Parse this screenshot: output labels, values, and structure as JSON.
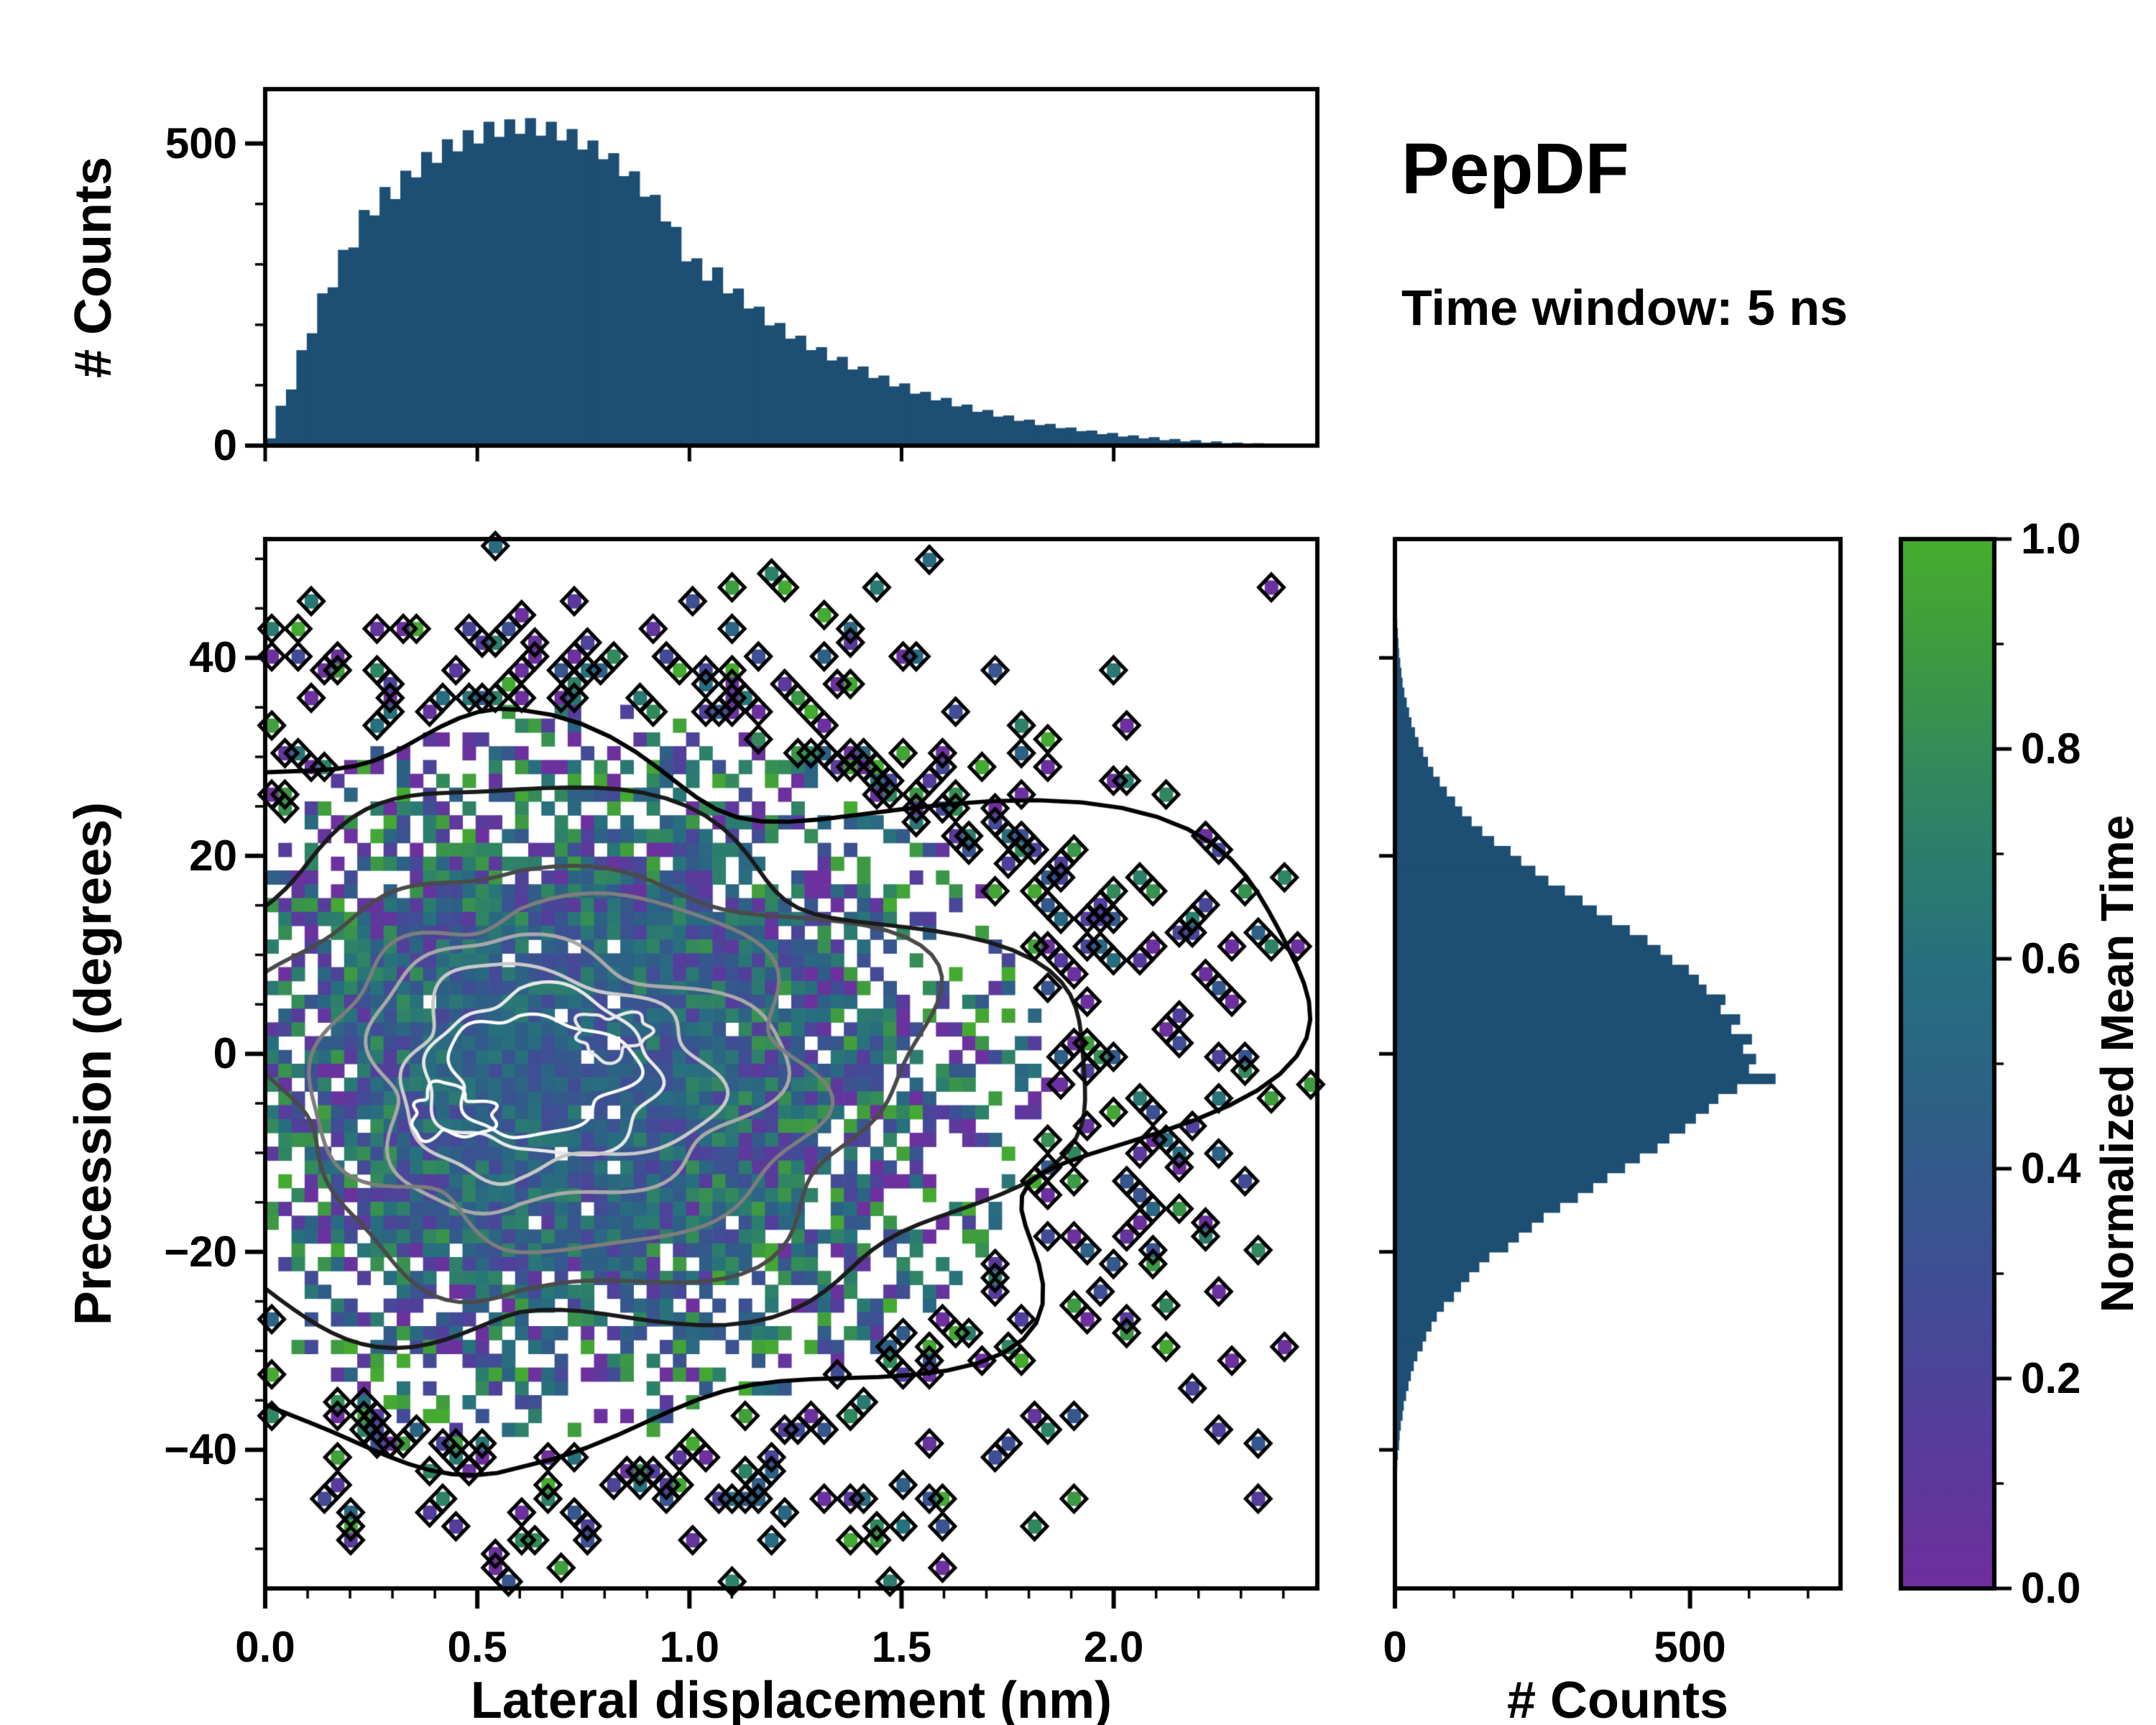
{
  "figure": {
    "title": "PepDF",
    "subtitle": "Time window: 5 ns",
    "background": "#ffffff"
  },
  "style": {
    "histogram_fill": "#1d4e74",
    "axis_color": "#000000",
    "colormap_stops": [
      [
        0.0,
        "#6f2f9e"
      ],
      [
        0.15,
        "#553d9c"
      ],
      [
        0.3,
        "#3e4f94"
      ],
      [
        0.45,
        "#2e5f86"
      ],
      [
        0.6,
        "#27707e"
      ],
      [
        0.75,
        "#2f8563"
      ],
      [
        0.9,
        "#3f9c3f"
      ],
      [
        1.0,
        "#46ad2e"
      ]
    ],
    "contour_colors": [
      "#ffffff",
      "#e8e8e8",
      "#c9c9c9",
      "#a8a8a8",
      "#7d7d7d",
      "#4a4a4a",
      "#1a1a1a",
      "#000000"
    ]
  },
  "chart_data": [
    {
      "type": "bar",
      "role": "top-marginal-histogram",
      "ylabel": "# Counts",
      "x_range": [
        0,
        2.48
      ],
      "y_range": [
        0,
        590
      ],
      "ytick_values": [
        0,
        500
      ],
      "ytick_labels": [
        "0",
        "500"
      ],
      "y_minor_step": 100,
      "bin_start": 0,
      "bin_width": 0.0245,
      "values": [
        12,
        66,
        93,
        158,
        186,
        252,
        262,
        324,
        328,
        390,
        381,
        428,
        408,
        455,
        444,
        486,
        468,
        507,
        487,
        522,
        500,
        536,
        511,
        540,
        516,
        542,
        513,
        536,
        505,
        524,
        490,
        505,
        474,
        484,
        446,
        454,
        412,
        415,
        371,
        362,
        305,
        310,
        273,
        295,
        252,
        260,
        227,
        230,
        199,
        203,
        177,
        182,
        158,
        163,
        141,
        147,
        126,
        131,
        112,
        116,
        98,
        103,
        86,
        89,
        75,
        79,
        65,
        68,
        56,
        59,
        48,
        50,
        41,
        43,
        34,
        36,
        29,
        30,
        24,
        25,
        19,
        21,
        15,
        17,
        12,
        14,
        9,
        11,
        7,
        9,
        5,
        7,
        4,
        5,
        3,
        4,
        2,
        3,
        1,
        2
      ]
    },
    {
      "type": "heatmap",
      "role": "joint-2d-histogram",
      "xlabel": "Lateral displacement (nm)",
      "ylabel": "Precession (degrees)",
      "x_range": [
        0,
        2.48
      ],
      "y_range": [
        -54,
        52
      ],
      "xtick_values": [
        0,
        0.5,
        1.0,
        1.5,
        2.0
      ],
      "xtick_labels": [
        "0.0",
        "0.5",
        "1.0",
        "1.5",
        "2.0"
      ],
      "x_minor_step": 0.1,
      "ytick_values": [
        -40,
        -20,
        0,
        20,
        40
      ],
      "ytick_labels": [
        "−40",
        "−20",
        "0",
        "20",
        "40"
      ],
      "y_minor_step": 5,
      "colorbar": {
        "label": "Normalized Mean Time",
        "range": [
          0,
          1
        ],
        "tick_values": [
          0,
          0.2,
          0.4,
          0.6,
          0.8,
          1.0
        ],
        "tick_labels": [
          "0.0",
          "0.2",
          "0.4",
          "0.6",
          "0.8",
          "1.0"
        ],
        "minor_step": 0.1
      },
      "density_model": {
        "grid": [
          80,
          76
        ],
        "center": [
          0.6,
          -2
        ],
        "sigma_x_left": 0.34,
        "sigma_x_right": 0.55,
        "sigma_y": 16.5,
        "value_center": 0.47,
        "seed": 1337
      },
      "contours": {
        "center": [
          0.6,
          -2
        ],
        "levels": [
          [
            0.2,
            6.0
          ],
          [
            0.26,
            8.0
          ],
          [
            0.34,
            10.5
          ],
          [
            0.44,
            13.5
          ],
          [
            0.56,
            17.0
          ],
          [
            0.72,
            21.5
          ],
          [
            0.95,
            27.5
          ],
          [
            1.28,
            36.0
          ]
        ]
      }
    },
    {
      "type": "bar",
      "role": "right-marginal-histogram",
      "xlabel": "# Counts",
      "x_range": [
        0,
        755
      ],
      "xtick_values": [
        0,
        500
      ],
      "xtick_labels": [
        "0",
        "500"
      ],
      "x_minor_step": 100,
      "bin_start": -46,
      "bin_width": 1,
      "values": [
        1,
        2,
        2,
        3,
        4,
        5,
        7,
        8,
        10,
        13,
        15,
        19,
        23,
        27,
        32,
        38,
        47,
        53,
        62,
        71,
        83,
        100,
        112,
        126,
        143,
        160,
        192,
        210,
        232,
        252,
        280,
        310,
        336,
        360,
        390,
        415,
        445,
        465,
        492,
        510,
        532,
        548,
        580,
        645,
        600,
        612,
        590,
        605,
        570,
        585,
        552,
        560,
        528,
        515,
        498,
        470,
        450,
        428,
        398,
        368,
        342,
        318,
        288,
        260,
        238,
        214,
        196,
        168,
        148,
        130,
        114,
        102,
        88,
        76,
        65,
        56,
        48,
        40,
        34,
        28,
        24,
        20,
        16,
        13,
        11,
        9,
        7,
        6,
        5,
        4,
        3,
        2,
        2,
        1,
        1,
        1,
        1
      ]
    }
  ]
}
